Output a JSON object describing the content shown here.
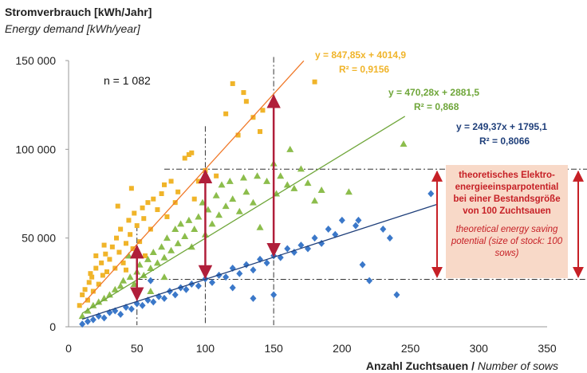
{
  "chart_data": {
    "type": "scatter",
    "title_de": "Stromverbrauch [kWh/Jahr]",
    "title_en": "Energy demand [kWh/year]",
    "xlabel_de": "Anzahl Zuchtsauen / ",
    "xlabel_en": "Number of sows",
    "xlim": [
      0,
      350
    ],
    "ylim": [
      0,
      150000
    ],
    "xticks": [
      "0",
      "50",
      "100",
      "150",
      "200",
      "250",
      "300",
      "350"
    ],
    "yticks": [
      "0",
      "50 000",
      "100 000",
      "150 000"
    ],
    "n_label": "n = 1 082",
    "series": [
      {
        "color": "#f0b429",
        "marker": "square",
        "equation": "y = 847,85x + 4014,9",
        "r2": "R² = 0,9156",
        "slope": 847.85,
        "intercept": 4014.9,
        "points": [
          [
            8,
            12000
          ],
          [
            10,
            18000
          ],
          [
            12,
            21000
          ],
          [
            14,
            15000
          ],
          [
            15,
            25000
          ],
          [
            17,
            28000
          ],
          [
            18,
            20000
          ],
          [
            20,
            33000
          ],
          [
            22,
            24000
          ],
          [
            24,
            36000
          ],
          [
            25,
            29000
          ],
          [
            27,
            41000
          ],
          [
            28,
            31000
          ],
          [
            30,
            38000
          ],
          [
            32,
            45000
          ],
          [
            34,
            33000
          ],
          [
            35,
            50000
          ],
          [
            37,
            42000
          ],
          [
            38,
            55000
          ],
          [
            40,
            36000
          ],
          [
            42,
            47000
          ],
          [
            44,
            60000
          ],
          [
            45,
            52000
          ],
          [
            47,
            44000
          ],
          [
            48,
            64000
          ],
          [
            50,
            57000
          ],
          [
            52,
            48000
          ],
          [
            54,
            67000
          ],
          [
            55,
            61000
          ],
          [
            58,
            70000
          ],
          [
            60,
            55000
          ],
          [
            62,
            72000
          ],
          [
            65,
            66000
          ],
          [
            68,
            75000
          ],
          [
            70,
            80000
          ],
          [
            72,
            62000
          ],
          [
            75,
            82000
          ],
          [
            78,
            70000
          ],
          [
            80,
            76000
          ],
          [
            85,
            95000
          ],
          [
            88,
            97000
          ],
          [
            90,
            98000
          ],
          [
            92,
            72000
          ],
          [
            95,
            82000
          ],
          [
            100,
            88000
          ],
          [
            108,
            85000
          ],
          [
            115,
            120000
          ],
          [
            120,
            137000
          ],
          [
            124,
            108000
          ],
          [
            128,
            132000
          ],
          [
            130,
            127000
          ],
          [
            135,
            118000
          ],
          [
            140,
            110000
          ],
          [
            142,
            122000
          ],
          [
            180,
            138000
          ],
          [
            36,
            68000
          ],
          [
            42,
            32000
          ],
          [
            46,
            78000
          ],
          [
            56,
            40000
          ],
          [
            26,
            46000
          ],
          [
            20,
            40000
          ],
          [
            16,
            30000
          ]
        ]
      },
      {
        "color": "#8cbd4c",
        "marker": "triangle",
        "equation": "y = 470,28x + 2881,5",
        "r2": "R² = 0,868",
        "slope": 470.28,
        "intercept": 2881.5,
        "points": [
          [
            10,
            6000
          ],
          [
            14,
            9000
          ],
          [
            18,
            12000
          ],
          [
            22,
            14000
          ],
          [
            26,
            16000
          ],
          [
            30,
            18000
          ],
          [
            34,
            21000
          ],
          [
            38,
            23000
          ],
          [
            40,
            26000
          ],
          [
            45,
            28000
          ],
          [
            48,
            24000
          ],
          [
            50,
            31000
          ],
          [
            52,
            35000
          ],
          [
            55,
            29000
          ],
          [
            58,
            38000
          ],
          [
            60,
            33000
          ],
          [
            62,
            42000
          ],
          [
            65,
            36000
          ],
          [
            68,
            45000
          ],
          [
            70,
            39000
          ],
          [
            72,
            50000
          ],
          [
            75,
            43000
          ],
          [
            78,
            55000
          ],
          [
            80,
            47000
          ],
          [
            82,
            58000
          ],
          [
            85,
            51000
          ],
          [
            88,
            60000
          ],
          [
            90,
            45000
          ],
          [
            92,
            55000
          ],
          [
            95,
            62000
          ],
          [
            98,
            70000
          ],
          [
            100,
            52000
          ],
          [
            102,
            66000
          ],
          [
            105,
            58000
          ],
          [
            108,
            74000
          ],
          [
            110,
            63000
          ],
          [
            112,
            80000
          ],
          [
            115,
            68000
          ],
          [
            118,
            82000
          ],
          [
            120,
            72000
          ],
          [
            125,
            65000
          ],
          [
            128,
            84000
          ],
          [
            130,
            76000
          ],
          [
            135,
            70000
          ],
          [
            138,
            85000
          ],
          [
            140,
            56000
          ],
          [
            145,
            82000
          ],
          [
            150,
            92000
          ],
          [
            152,
            75000
          ],
          [
            155,
            85000
          ],
          [
            160,
            80000
          ],
          [
            162,
            100000
          ],
          [
            165,
            78000
          ],
          [
            170,
            89000
          ],
          [
            175,
            81000
          ],
          [
            180,
            71000
          ],
          [
            185,
            77000
          ],
          [
            205,
            76000
          ],
          [
            245,
            103000
          ],
          [
            60,
            20000
          ],
          [
            70,
            28000
          ],
          [
            44,
            40000
          ]
        ]
      },
      {
        "color": "#3b78c9",
        "marker": "diamond",
        "equation": "y = 249,37x + 1795,1",
        "r2": "R² = 0,8066",
        "slope": 249.37,
        "intercept": 1795.1,
        "points": [
          [
            10,
            1500
          ],
          [
            14,
            3000
          ],
          [
            18,
            4000
          ],
          [
            22,
            6000
          ],
          [
            26,
            5000
          ],
          [
            30,
            8000
          ],
          [
            34,
            9000
          ],
          [
            38,
            7000
          ],
          [
            42,
            11000
          ],
          [
            46,
            10000
          ],
          [
            50,
            13000
          ],
          [
            54,
            12000
          ],
          [
            58,
            15000
          ],
          [
            62,
            14000
          ],
          [
            66,
            17000
          ],
          [
            70,
            16000
          ],
          [
            74,
            20000
          ],
          [
            78,
            18000
          ],
          [
            82,
            22000
          ],
          [
            86,
            21000
          ],
          [
            90,
            24000
          ],
          [
            95,
            23000
          ],
          [
            100,
            27000
          ],
          [
            105,
            25000
          ],
          [
            110,
            29000
          ],
          [
            115,
            28000
          ],
          [
            120,
            33000
          ],
          [
            125,
            30000
          ],
          [
            130,
            35000
          ],
          [
            135,
            32000
          ],
          [
            140,
            38000
          ],
          [
            145,
            36000
          ],
          [
            150,
            40000
          ],
          [
            155,
            39000
          ],
          [
            160,
            44000
          ],
          [
            165,
            42000
          ],
          [
            170,
            46000
          ],
          [
            175,
            44000
          ],
          [
            180,
            50000
          ],
          [
            185,
            47000
          ],
          [
            190,
            55000
          ],
          [
            195,
            52000
          ],
          [
            200,
            60000
          ],
          [
            210,
            57000
          ],
          [
            212,
            60000
          ],
          [
            215,
            35000
          ],
          [
            220,
            26000
          ],
          [
            230,
            55000
          ],
          [
            235,
            50000
          ],
          [
            240,
            18000
          ],
          [
            265,
            75000
          ],
          [
            150,
            18000
          ],
          [
            135,
            16000
          ],
          [
            120,
            22000
          ],
          [
            60,
            26000
          ]
        ]
      }
    ],
    "annotation_box": {
      "de": "theoretisches Elektro-energieeinsparpotential bei einer Bestandsgröße von 100 Zuchtsauen",
      "en": "theoretical energy saving potential (size of stock: 100 sows)"
    }
  }
}
